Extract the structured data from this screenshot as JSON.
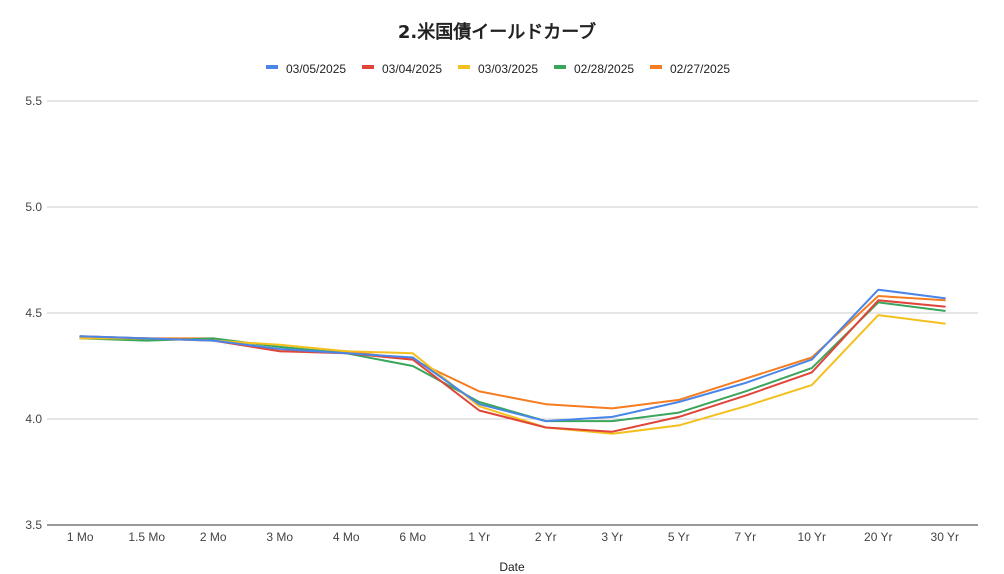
{
  "chart_data": {
    "type": "line",
    "title": "2.米国債イールドカーブ",
    "xlabel": "Date",
    "ylabel": "",
    "ylim": [
      3.5,
      5.5
    ],
    "yticks": [
      "3.5",
      "4.0",
      "4.5",
      "5.0",
      "5.5"
    ],
    "categories": [
      "1 Mo",
      "1.5 Mo",
      "2 Mo",
      "3 Mo",
      "4 Mo",
      "6 Mo",
      "1 Yr",
      "2 Yr",
      "3 Yr",
      "5 Yr",
      "7 Yr",
      "10 Yr",
      "20 Yr",
      "30 Yr"
    ],
    "grid": "horizontal",
    "legend_position": "top",
    "series": [
      {
        "name": "03/05/2025",
        "color": "#4a86e8",
        "values": [
          4.39,
          4.38,
          4.37,
          4.33,
          4.31,
          4.29,
          4.07,
          3.99,
          4.01,
          4.08,
          4.17,
          4.28,
          4.61,
          4.57
        ]
      },
      {
        "name": "03/04/2025",
        "color": "#e0453a",
        "values": [
          4.39,
          4.38,
          4.37,
          4.32,
          4.31,
          4.28,
          4.04,
          3.96,
          3.94,
          4.01,
          4.11,
          4.22,
          4.56,
          4.53
        ]
      },
      {
        "name": "03/03/2025",
        "color": "#f4c01e",
        "values": [
          4.38,
          4.38,
          4.37,
          4.35,
          4.32,
          4.31,
          4.06,
          3.96,
          3.93,
          3.97,
          4.06,
          4.16,
          4.49,
          4.45
        ]
      },
      {
        "name": "02/28/2025",
        "color": "#3ba55c",
        "values": [
          4.38,
          4.37,
          4.38,
          4.34,
          4.31,
          4.25,
          4.08,
          3.99,
          3.99,
          4.03,
          4.13,
          4.24,
          4.55,
          4.51
        ]
      },
      {
        "name": "02/27/2025",
        "color": "#f57c1f",
        "values": [
          4.38,
          4.38,
          4.38,
          4.32,
          4.32,
          4.28,
          4.13,
          4.07,
          4.05,
          4.09,
          4.19,
          4.29,
          4.58,
          4.56
        ]
      }
    ]
  }
}
